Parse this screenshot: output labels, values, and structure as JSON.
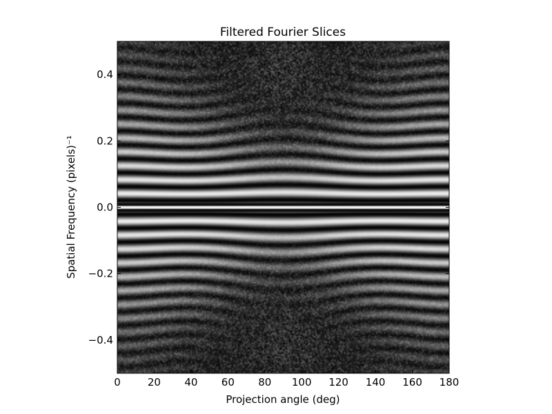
{
  "chart_data": {
    "type": "heatmap",
    "title": "Filtered Fourier Slices",
    "xlabel": "Projection angle (deg)",
    "ylabel": "Spatial Frequency (pixels)⁻¹",
    "xlim": [
      0,
      180
    ],
    "ylim": [
      -0.5,
      0.5
    ],
    "x_ticks": [
      0,
      20,
      40,
      60,
      80,
      100,
      120,
      140,
      160,
      180
    ],
    "y_ticks": [
      0.4,
      0.2,
      0.0,
      -0.2,
      -0.4
    ],
    "y_tick_labels": [
      "0.4",
      "0.2",
      "0.0",
      "−0.2",
      "−0.4"
    ],
    "colormap": "gray",
    "grid": false,
    "pattern": {
      "description": "Oscillating horizontal fringes symmetric about frequency 0 and angle 90; fringes bow toward the center near 90 deg, with a bright band at frequency 0 and noisy dark regions at high frequencies",
      "center_angle": 90,
      "center_frequency": 0.0
    }
  }
}
